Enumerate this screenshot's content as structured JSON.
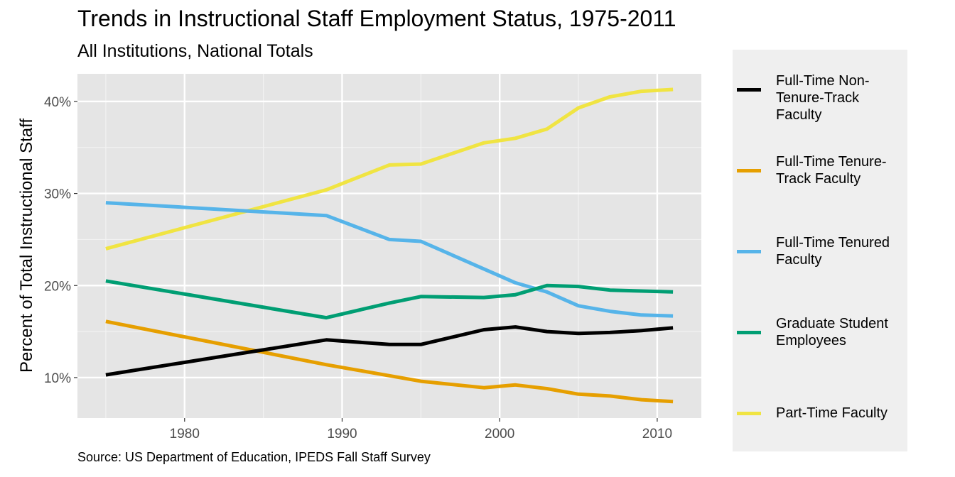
{
  "chart_data": {
    "type": "line",
    "title": "Trends in Instructional Staff Employment Status, 1975-2011",
    "subtitle": "All Institutions, National Totals",
    "caption": "Source: US Department of Education, IPEDS Fall Staff Survey",
    "xlabel": "",
    "ylabel": "Percent of Total Instructional Staff",
    "xlim": [
      1973.2,
      2012.8
    ],
    "ylim": [
      5.6,
      43.0
    ],
    "xticks": [
      1980,
      1990,
      2000,
      2010
    ],
    "xtick_labels": [
      "1980",
      "1990",
      "2000",
      "2010"
    ],
    "yticks": [
      10,
      20,
      30,
      40
    ],
    "ytick_labels": [
      "10%",
      "20%",
      "30%",
      "40%"
    ],
    "grid": true,
    "legend_position": "right",
    "series": [
      {
        "name": "Full-Time Non-\nTenure-Track Faculty",
        "color": "#000000",
        "x": [
          1975,
          1989,
          1993,
          1995,
          1999,
          2001,
          2003,
          2005,
          2007,
          2009,
          2011
        ],
        "values": [
          10.3,
          14.1,
          13.6,
          13.6,
          15.2,
          15.5,
          15.0,
          14.8,
          14.9,
          15.1,
          15.4
        ]
      },
      {
        "name": "Full-Time Tenure-\nTrack Faculty",
        "color": "#E69F00",
        "x": [
          1975,
          1989,
          1993,
          1995,
          1999,
          2001,
          2003,
          2005,
          2007,
          2009,
          2011
        ],
        "values": [
          16.1,
          11.4,
          10.2,
          9.6,
          8.9,
          9.2,
          8.8,
          8.2,
          8.0,
          7.6,
          7.4
        ]
      },
      {
        "name": "Full-Time Tenured\nFaculty",
        "color": "#56B4E9",
        "x": [
          1975,
          1989,
          1993,
          1995,
          1999,
          2001,
          2003,
          2005,
          2007,
          2009,
          2011
        ],
        "values": [
          29.0,
          27.6,
          25.0,
          24.8,
          21.8,
          20.3,
          19.3,
          17.8,
          17.2,
          16.8,
          16.7
        ]
      },
      {
        "name": "Graduate Student\nEmployees",
        "color": "#009E73",
        "x": [
          1975,
          1989,
          1993,
          1995,
          1999,
          2001,
          2003,
          2005,
          2007,
          2009,
          2011
        ],
        "values": [
          20.5,
          16.5,
          18.1,
          18.8,
          18.7,
          19.0,
          20.0,
          19.9,
          19.5,
          19.4,
          19.3
        ]
      },
      {
        "name": "Part-Time Faculty",
        "color": "#F0E442",
        "x": [
          1975,
          1989,
          1993,
          1995,
          1999,
          2001,
          2003,
          2005,
          2007,
          2009,
          2011
        ],
        "values": [
          24.0,
          30.4,
          33.1,
          33.2,
          35.5,
          36.0,
          37.0,
          39.3,
          40.5,
          41.1,
          41.3
        ]
      }
    ]
  }
}
